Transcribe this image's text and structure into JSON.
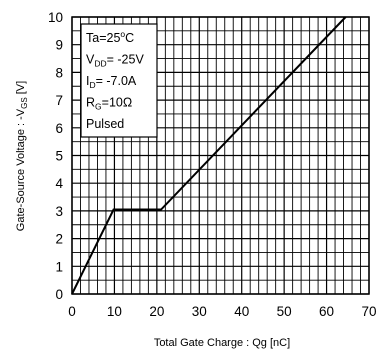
{
  "chart_data": {
    "type": "line",
    "title": "",
    "xlabel": "Total Gate Charge : Qg  [nC]",
    "ylabel": {
      "main": "Gate-Source Voltage : -V",
      "sub": "GS",
      "unit": " [V]"
    },
    "xlim": [
      0,
      70
    ],
    "ylim": [
      0,
      10
    ],
    "x_major_ticks": [
      0,
      10,
      20,
      30,
      40,
      50,
      60,
      70
    ],
    "x_tick_labels": [
      "0",
      "10",
      "20",
      "30",
      "40",
      "50",
      "60",
      "70"
    ],
    "y_major_ticks": [
      0,
      1,
      2,
      3,
      4,
      5,
      6,
      7,
      8,
      9,
      10
    ],
    "y_tick_labels": [
      "0",
      "1",
      "2",
      "3",
      "4",
      "5",
      "6",
      "7",
      "8",
      "9",
      "10"
    ],
    "x_minor_step": 2,
    "y_minor_step": 0.5,
    "grid": true,
    "series": [
      {
        "x": [
          0,
          9.8,
          21.0,
          64.5
        ],
        "y": [
          0,
          3.05,
          3.05,
          10.0
        ]
      }
    ],
    "legend_box": {
      "placement": "top-left",
      "lines": [
        {
          "main": "Ta=25",
          "sup": "o",
          "rest": "C"
        },
        {
          "main": "V",
          "sub": "DD",
          "rest": "= -25V"
        },
        {
          "main": "I",
          "sub": "D",
          "rest": "= -7.0A"
        },
        {
          "main": "R",
          "sub": "G",
          "rest": "=10Ω"
        },
        {
          "main": "Pulsed"
        }
      ]
    },
    "colors": {
      "line": "#000000",
      "grid": "#000000",
      "background": "#ffffff"
    }
  }
}
